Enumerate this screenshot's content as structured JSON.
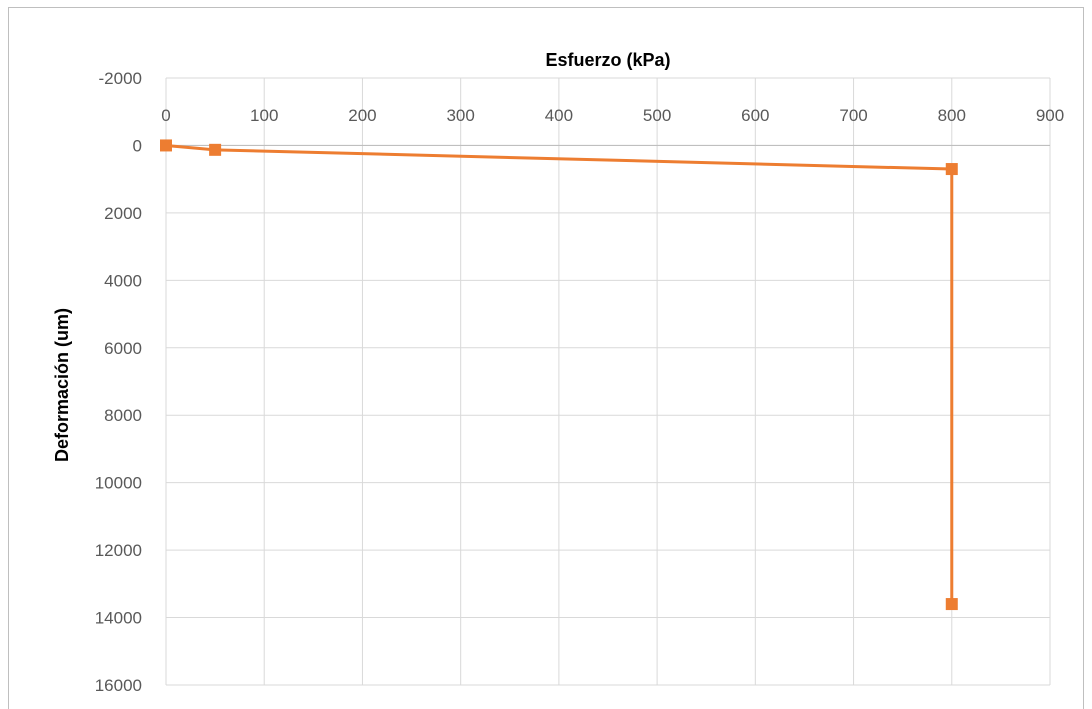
{
  "chart_data": {
    "type": "line",
    "title": "",
    "xlabel": "Esfuerzo (kPa)",
    "ylabel": "Deformación  (um)",
    "xlim": [
      0,
      900
    ],
    "ylim": [
      -2000,
      16000
    ],
    "y_reversed": true,
    "x_axis_position": "top",
    "grid": true,
    "legend": "none",
    "x_ticks": [
      "0",
      "100",
      "200",
      "300",
      "400",
      "500",
      "600",
      "700",
      "800",
      "900"
    ],
    "y_ticks": [
      "-2000",
      "0",
      "2000",
      "4000",
      "6000",
      "8000",
      "10000",
      "12000",
      "14000",
      "16000"
    ],
    "series": [
      {
        "color": "#ED7D31",
        "marker": "square",
        "x": [
          0,
          50,
          800,
          800
        ],
        "y": [
          0,
          130,
          700,
          13600
        ]
      }
    ]
  }
}
